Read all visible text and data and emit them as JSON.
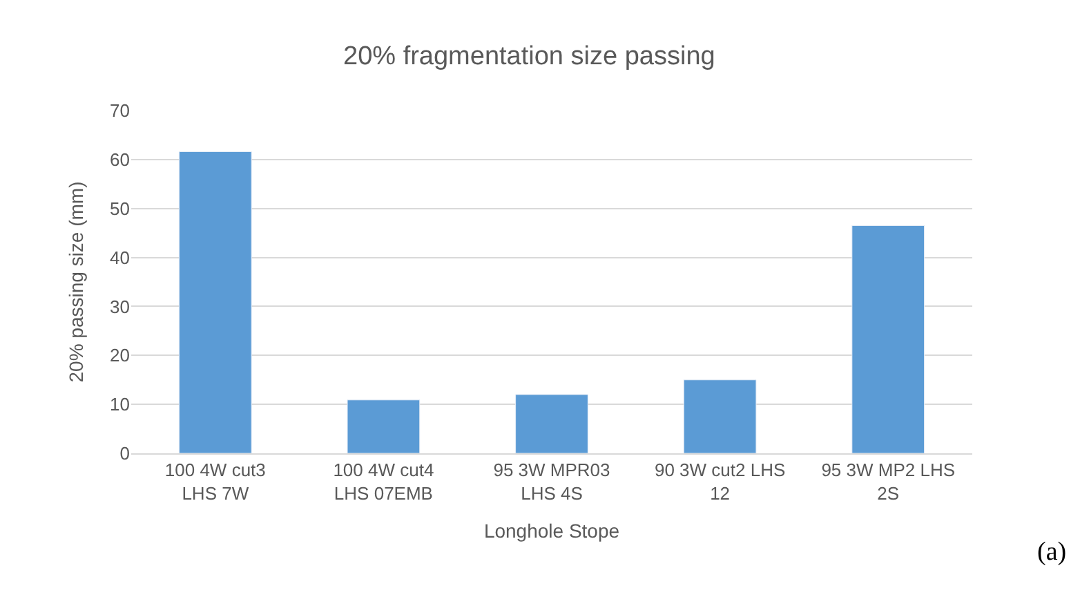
{
  "chart_data": {
    "type": "bar",
    "title": "20% fragmentation size passing",
    "xlabel": "Longhole Stope",
    "ylabel": "20% passing size (mm)",
    "categories": [
      "100 4W cut3 LHS 7W",
      "100 4W cut4 LHS 07EMB",
      "95 3W MPR03 LHS 4S",
      "90 3W cut2 LHS 12",
      "95 3W MP2 LHS 2S"
    ],
    "values": [
      61.6,
      10.9,
      12.0,
      15.0,
      46.5
    ],
    "color": "#5b9bd5",
    "ylim": [
      0,
      70
    ],
    "yticks": [
      0,
      10,
      20,
      30,
      40,
      50,
      60,
      70
    ],
    "grid": "y",
    "annotations": [
      "(a)"
    ]
  }
}
